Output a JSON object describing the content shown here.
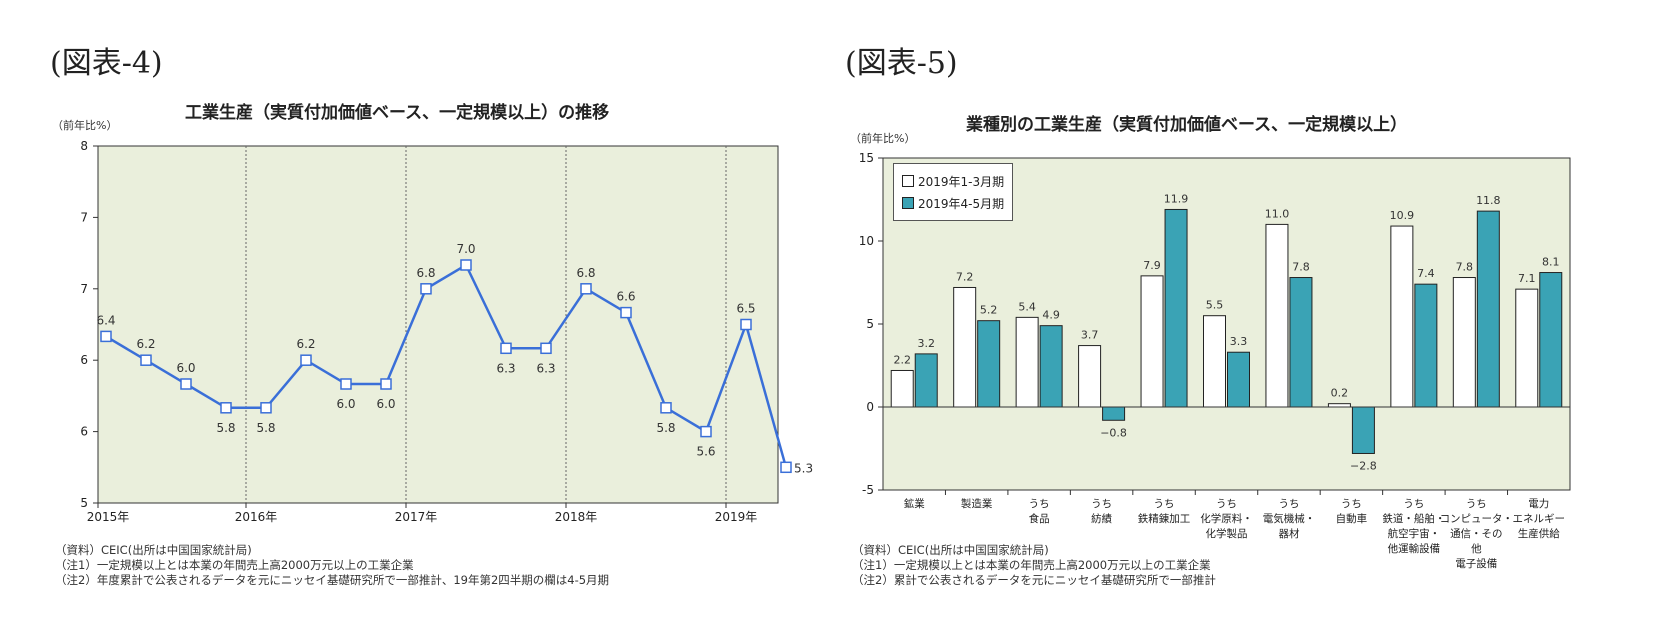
{
  "left": {
    "panel_label": "(図表-4)",
    "notes": [
      "（資料）CEIC(出所は中国国家統計局)",
      "（注1）一定規模以上とは本業の年間売上高2000万元以上の工業企業",
      "（注2）年度累計で公表されるデータを元にニッセイ基礎研究所で一部推計、19年第2四半期の欄は4-5月期"
    ]
  },
  "right": {
    "panel_label": "(図表-5)",
    "notes": [
      "（資料）CEIC(出所は中国国家統計局)",
      "（注1）一定規模以上とは本業の年間売上高2000万元以上の工業企業",
      "（注2）累計で公表されるデータを元にニッセイ基礎研究所で一部推計"
    ]
  },
  "chart_data": [
    {
      "type": "line",
      "title": "工業生産（実質付加価値ベース、一定規模以上）の推移",
      "ylabel": "（前年比%）",
      "yticks": [
        "8",
        "7",
        "7",
        "6",
        "6",
        "5"
      ],
      "ylim": [
        5,
        8
      ],
      "xticks": [
        "2015年",
        "2016年",
        "2017年",
        "2018年",
        "2019年"
      ],
      "grid": "vertical dotted lines at year boundaries",
      "colors": {
        "line": "#3a6fd8",
        "plot_bg": "#eaefdc"
      },
      "series": [
        {
          "x": [
            "2015Q1",
            "2015Q2",
            "2015Q3",
            "2015Q4",
            "2016Q1",
            "2016Q2",
            "2016Q3",
            "2016Q4",
            "2017Q1",
            "2017Q2",
            "2017Q3",
            "2017Q4",
            "2018Q1",
            "2018Q2",
            "2018Q3",
            "2018Q4",
            "2019Q1",
            "2019Q2"
          ],
          "values": [
            6.4,
            6.2,
            6.0,
            5.8,
            5.8,
            6.2,
            6.0,
            6.0,
            6.8,
            7.0,
            6.3,
            6.3,
            6.8,
            6.6,
            5.8,
            5.6,
            6.5,
            5.3
          ],
          "labels": [
            "6.4",
            "6.2",
            "6.0",
            "5.8",
            "5.8",
            "6.2",
            "6.0",
            "6.0",
            "6.8",
            "7.0",
            "6.3",
            "6.3",
            "6.8",
            "6.6",
            "5.8",
            "5.6",
            "6.5",
            "5.3"
          ]
        }
      ]
    },
    {
      "type": "bar",
      "title": "業種別の工業生産（実質付加価値ベース、一定規模以上）",
      "ylabel": "（前年比%）",
      "ylim": [
        -5,
        15
      ],
      "yticks": [
        15,
        10,
        5,
        0,
        -5
      ],
      "legend_position": "top-left",
      "categories": [
        [
          "鉱業"
        ],
        [
          "製造業"
        ],
        [
          "うち",
          "食品"
        ],
        [
          "うち",
          "紡績"
        ],
        [
          "うち",
          "鉄精錬加工"
        ],
        [
          "うち",
          "化学原料・",
          "化学製品"
        ],
        [
          "うち",
          "電気機械・",
          "器材"
        ],
        [
          "うち",
          "自動車"
        ],
        [
          "うち",
          "鉄道・船舶・",
          "航空宇宙・",
          "他運輸設備"
        ],
        [
          "うち",
          "コンピュータ・",
          "通信・その",
          "他",
          "電子設備"
        ],
        [
          "電力",
          "エネルギー",
          "生産供給"
        ]
      ],
      "series": [
        {
          "name": "2019年1-3月期",
          "color": "#ffffff",
          "values": [
            2.2,
            7.2,
            5.4,
            3.7,
            7.9,
            5.5,
            11.0,
            0.2,
            10.9,
            7.8,
            7.1
          ],
          "labels": [
            "2.2",
            "7.2",
            "5.4",
            "3.7",
            "7.9",
            "5.5",
            "11.0",
            "0.2",
            "10.9",
            "7.8",
            "7.1"
          ]
        },
        {
          "name": "2019年4-5月期",
          "color": "#3aa3b5",
          "values": [
            3.2,
            5.2,
            4.9,
            -0.8,
            11.9,
            3.3,
            7.8,
            -2.8,
            7.4,
            11.8,
            8.1
          ],
          "labels": [
            "3.2",
            "5.2",
            "4.9",
            "−0.8",
            "11.9",
            "3.3",
            "7.8",
            "−2.8",
            "7.4",
            "11.8",
            "8.1"
          ]
        }
      ],
      "colors": {
        "plot_bg": "#eaefdc"
      }
    }
  ]
}
